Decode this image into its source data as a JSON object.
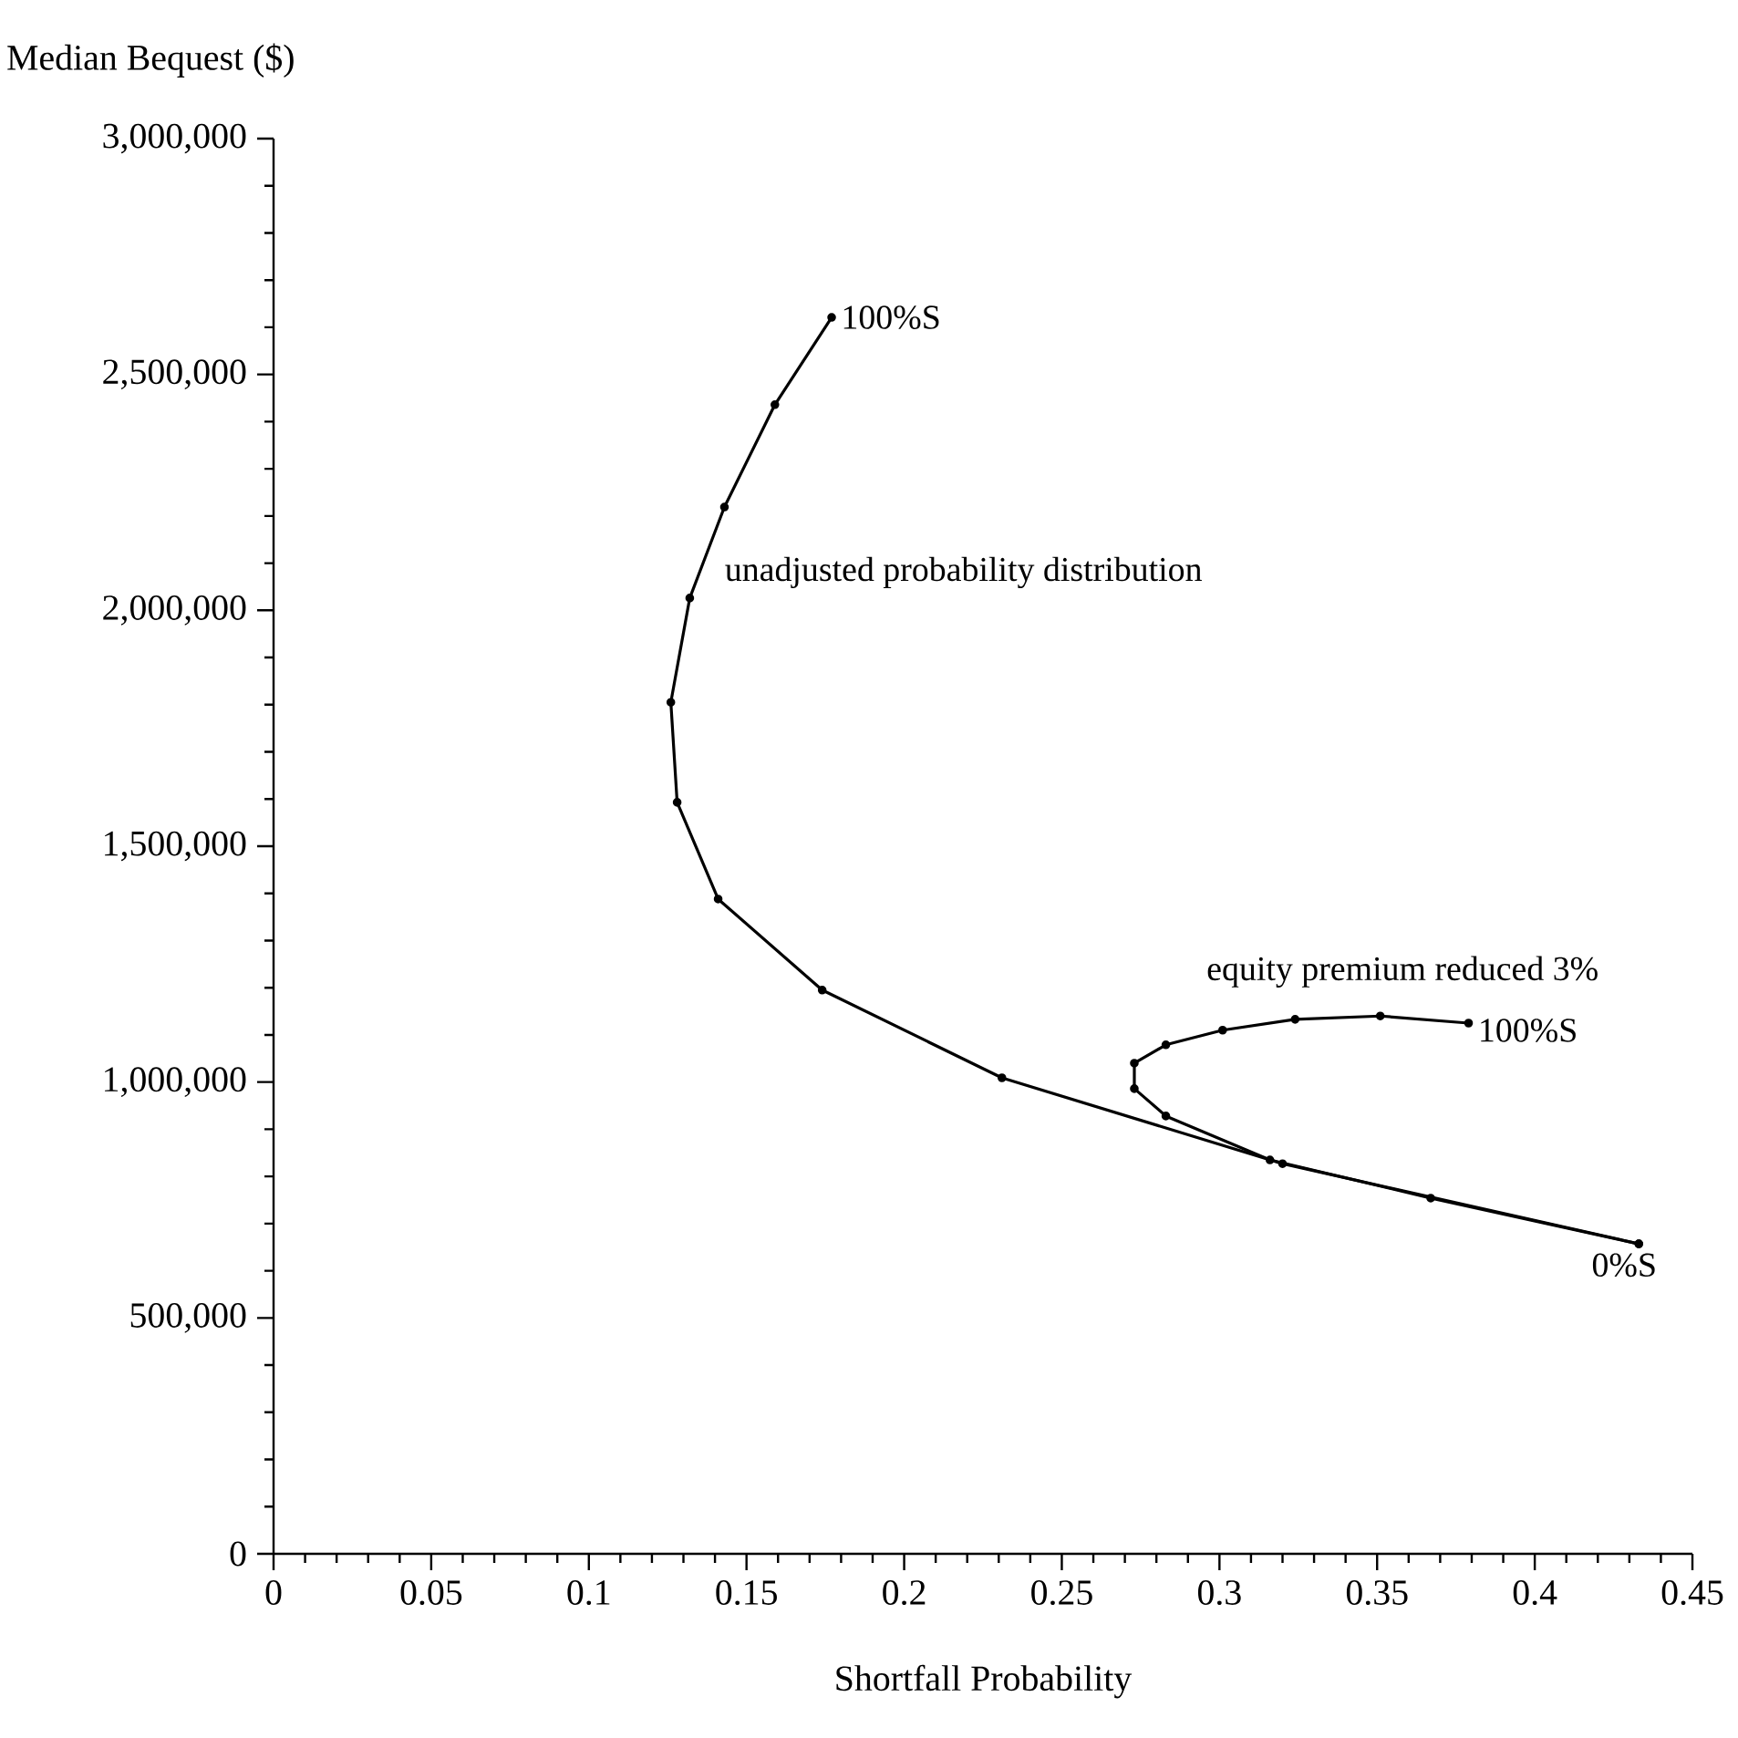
{
  "chart_data": {
    "type": "line",
    "xlabel": "Shortfall Probability",
    "ylabel": "Median Bequest ($)",
    "xlim": [
      0,
      0.45
    ],
    "xticks": [
      0,
      0.05,
      0.1,
      0.15,
      0.2,
      0.25,
      0.3,
      0.35,
      0.4,
      0.45
    ],
    "ylim": [
      0,
      3000000
    ],
    "yticks": [
      {
        "value": 0,
        "label": "0"
      },
      {
        "value": 500000,
        "label": "500,000"
      },
      {
        "value": 1000000,
        "label": "1,000,000"
      },
      {
        "value": 1500000,
        "label": "1,500,000"
      },
      {
        "value": 2000000,
        "label": "2,000,000"
      },
      {
        "value": 2500000,
        "label": "2,500,000"
      },
      {
        "value": 3000000,
        "label": "3,000,000"
      }
    ],
    "series": [
      {
        "color": "#000000",
        "x": [
          0.433,
          0.32,
          0.231,
          0.174,
          0.141,
          0.128,
          0.126,
          0.132,
          0.143,
          0.159,
          0.177
        ],
        "values": [
          657000,
          827000,
          1009000,
          1195000,
          1388000,
          1593000,
          1805000,
          2026000,
          2219000,
          2436000,
          2621000
        ]
      },
      {
        "color": "#000000",
        "x": [
          0.433,
          0.367,
          0.316,
          0.283,
          0.273,
          0.273,
          0.283,
          0.301,
          0.324,
          0.351,
          0.379
        ],
        "values": [
          657000,
          754000,
          835000,
          928000,
          986000,
          1040000,
          1079000,
          1110000,
          1133000,
          1140000,
          1125000
        ]
      }
    ],
    "annotations": [
      {
        "text": "100%S",
        "x": 0.177,
        "y": 2621000
      },
      {
        "text": "unadjusted probability distribution",
        "x": 0.132,
        "y": 2026000
      },
      {
        "text": "equity premium reduced 3%",
        "x": 0.301,
        "y": 1110000
      },
      {
        "text": "100%S",
        "x": 0.379,
        "y": 1125000
      },
      {
        "text": "0%S",
        "x": 0.433,
        "y": 657000
      }
    ],
    "marker": "circle",
    "line_style": "solid"
  }
}
